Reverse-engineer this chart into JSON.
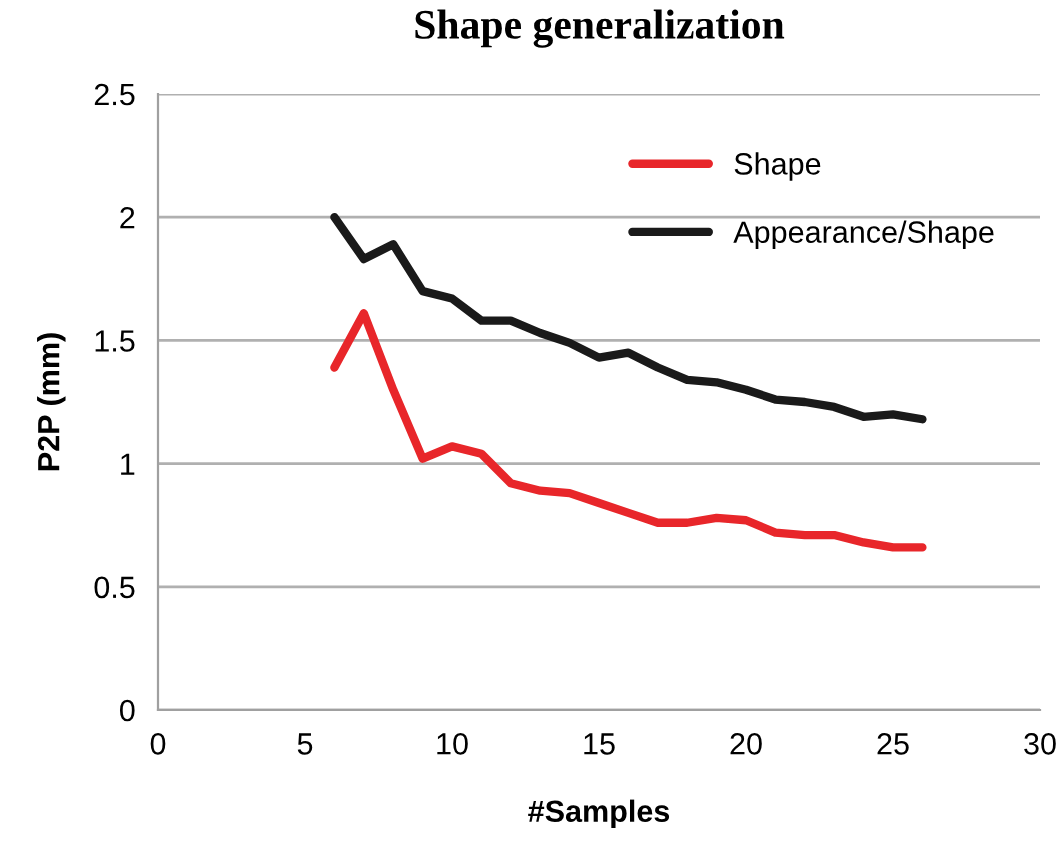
{
  "chart_data": {
    "type": "line",
    "title": "Shape generalization",
    "xlabel": "#Samples",
    "ylabel": "P2P (mm)",
    "x": [
      6,
      7,
      8,
      9,
      10,
      11,
      12,
      13,
      14,
      15,
      16,
      17,
      18,
      19,
      20,
      21,
      22,
      23,
      24,
      25,
      26
    ],
    "series": [
      {
        "name": "Shape",
        "color": "#e8262a",
        "values": [
          1.39,
          1.61,
          1.3,
          1.02,
          1.07,
          1.04,
          0.92,
          0.89,
          0.88,
          0.84,
          0.8,
          0.76,
          0.76,
          0.78,
          0.77,
          0.72,
          0.71,
          0.71,
          0.68,
          0.66,
          0.66
        ]
      },
      {
        "name": "Appearance/Shape",
        "color": "#1a1a1a",
        "values": [
          2.0,
          1.83,
          1.89,
          1.7,
          1.67,
          1.58,
          1.58,
          1.53,
          1.49,
          1.43,
          1.45,
          1.39,
          1.34,
          1.33,
          1.3,
          1.26,
          1.25,
          1.23,
          1.19,
          1.2,
          1.18
        ]
      }
    ],
    "xlim": [
      0,
      30
    ],
    "xticks": [
      0,
      5,
      10,
      15,
      20,
      25,
      30
    ],
    "ylim": [
      0,
      2.5
    ],
    "yticks": [
      0,
      0.5,
      1,
      1.5,
      2,
      2.5
    ],
    "grid": "y",
    "legend": "top right",
    "marker": "none",
    "line_style": "solid"
  }
}
